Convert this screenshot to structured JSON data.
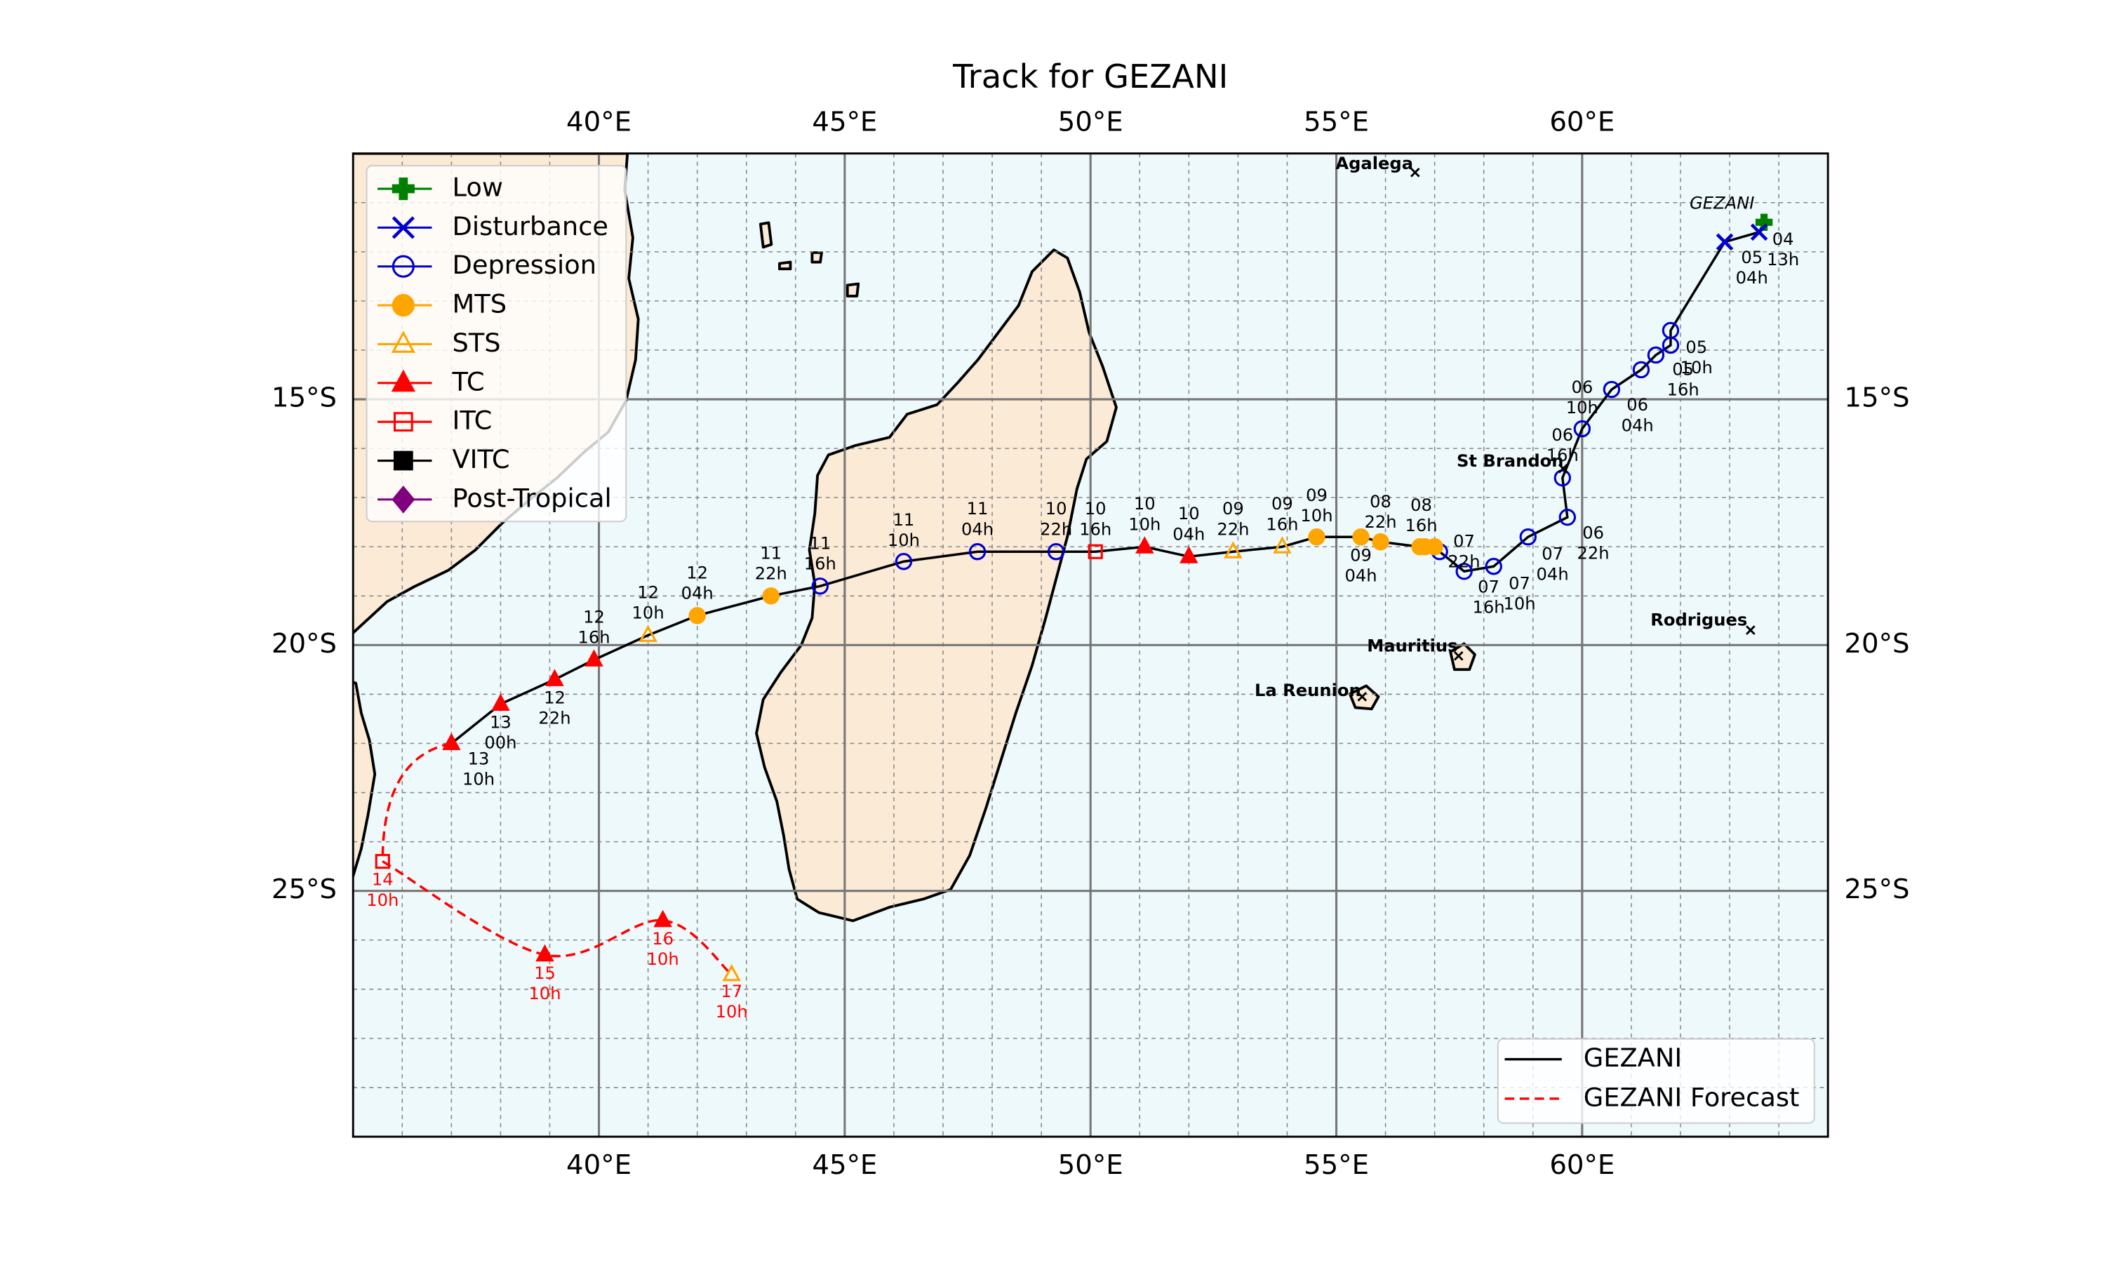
{
  "chart_data": {
    "type": "track",
    "title": "Track for GEZANI",
    "xlim": [
      35,
      65
    ],
    "ylim": [
      -30,
      -10
    ],
    "xticks": [
      {
        "value": 40,
        "label": "40°E"
      },
      {
        "value": 45,
        "label": "45°E"
      },
      {
        "value": 50,
        "label": "50°E"
      },
      {
        "value": 55,
        "label": "55°E"
      },
      {
        "value": 60,
        "label": "60°E"
      }
    ],
    "yticks": [
      {
        "value": -15,
        "label": "15°S"
      },
      {
        "value": -20,
        "label": "20°S"
      },
      {
        "value": -25,
        "label": "25°S"
      }
    ],
    "grid": true,
    "minor_grid": true,
    "legend": [
      {
        "name": "Low",
        "color": "#008000",
        "marker": "plus",
        "filled": true
      },
      {
        "name": "Disturbance",
        "color": "#0000cd",
        "marker": "x",
        "filled": false
      },
      {
        "name": "Depression",
        "color": "#0000cd",
        "marker": "circle",
        "filled": false
      },
      {
        "name": "MTS",
        "color": "#ffa500",
        "marker": "circle",
        "filled": true
      },
      {
        "name": "STS",
        "color": "#ffa500",
        "marker": "triangle",
        "filled": false
      },
      {
        "name": "TC",
        "color": "#ff0000",
        "marker": "triangle",
        "filled": true
      },
      {
        "name": "ITC",
        "color": "#ff0000",
        "marker": "square",
        "filled": false
      },
      {
        "name": "VITC",
        "color": "#000000",
        "marker": "square",
        "filled": true
      },
      {
        "name": "Post-Tropical",
        "color": "#800080",
        "marker": "diamond",
        "filled": true
      }
    ],
    "legend_position": "upper left",
    "line_legend_position": "lower right",
    "storm_label": "GEZANI",
    "places": [
      "Agalega",
      "St Brandon",
      "Mauritius",
      "La Reunion",
      "Rodrigues"
    ],
    "series": [
      {
        "name": "GEZANI",
        "color": "#000000",
        "dashed": false,
        "x": [
          63.7,
          63.6,
          62.9,
          61.8,
          61.8,
          61.5,
          61.2,
          60.6,
          60.0,
          59.6,
          59.7,
          58.9,
          58.2,
          57.6,
          57.1,
          57.0,
          56.8,
          56.7,
          55.9,
          55.5,
          54.6,
          53.9,
          52.9,
          52.0,
          51.1,
          50.1,
          49.3,
          47.7,
          46.2,
          44.5,
          43.5,
          42.0,
          41.0,
          39.9,
          39.1,
          38.0,
          37.0
        ],
        "values": [
          -11.4,
          -11.6,
          -11.8,
          -13.6,
          -13.9,
          -14.1,
          -14.4,
          -14.8,
          -15.6,
          -16.6,
          -17.4,
          -17.8,
          -18.4,
          -18.5,
          -18.1,
          -18.0,
          -18.0,
          -18.0,
          -17.9,
          -17.8,
          -17.8,
          -18.0,
          -18.1,
          -18.2,
          -18.0,
          -18.1,
          -18.1,
          -18.1,
          -18.3,
          -18.8,
          -19.0,
          -19.4,
          -19.8,
          -20.3,
          -20.7,
          -21.2,
          -22.0
        ],
        "category": [
          "Low",
          "Disturbance",
          "Disturbance",
          "Depression",
          "Depression",
          "Depression",
          "Depression",
          "Depression",
          "Depression",
          "Depression",
          "Depression",
          "Depression",
          "Depression",
          "Depression",
          "Depression",
          "MTS",
          "MTS",
          "MTS",
          "MTS",
          "MTS",
          "MTS",
          "STS",
          "STS",
          "TC",
          "TC",
          "ITC",
          "Depression",
          "Depression",
          "Depression",
          "Depression",
          "MTS",
          "MTS",
          "STS",
          "TC",
          "TC",
          "TC",
          "TC"
        ],
        "day": [
          "04",
          null,
          "05",
          null,
          "05",
          "05",
          null,
          "06",
          "06",
          "06",
          "06",
          "07",
          "07",
          "07",
          "07",
          null,
          null,
          "08",
          "08",
          "09",
          "09",
          "09",
          "09",
          "10",
          "10",
          "10",
          "10",
          "11",
          "11",
          "11",
          "11",
          "12",
          "12",
          "12",
          "12",
          "13",
          "13"
        ],
        "hour": [
          "13h",
          null,
          "04h",
          null,
          "10h",
          "16h",
          null,
          "04h",
          "10h",
          "16h",
          "22h",
          "04h",
          "10h",
          "16h",
          "22h",
          null,
          null,
          "16h",
          "22h",
          "04h",
          "10h",
          "16h",
          "22h",
          "04h",
          "10h",
          "16h",
          "22h",
          "04h",
          "10h",
          "16h",
          "22h",
          "04h",
          "10h",
          "16h",
          "22h",
          "00h",
          "10h"
        ]
      },
      {
        "name": "GEZANI Forecast",
        "color": "#ff0000",
        "dashed": true,
        "x": [
          35.6,
          38.9,
          41.3,
          42.7
        ],
        "values": [
          -24.4,
          -26.3,
          -25.6,
          -26.7
        ],
        "category": [
          "ITC",
          "TC",
          "TC",
          "STS"
        ],
        "day": [
          "14",
          "15",
          "16",
          "17"
        ],
        "hour": [
          "10h",
          "10h",
          "10h",
          "10h"
        ]
      }
    ]
  }
}
